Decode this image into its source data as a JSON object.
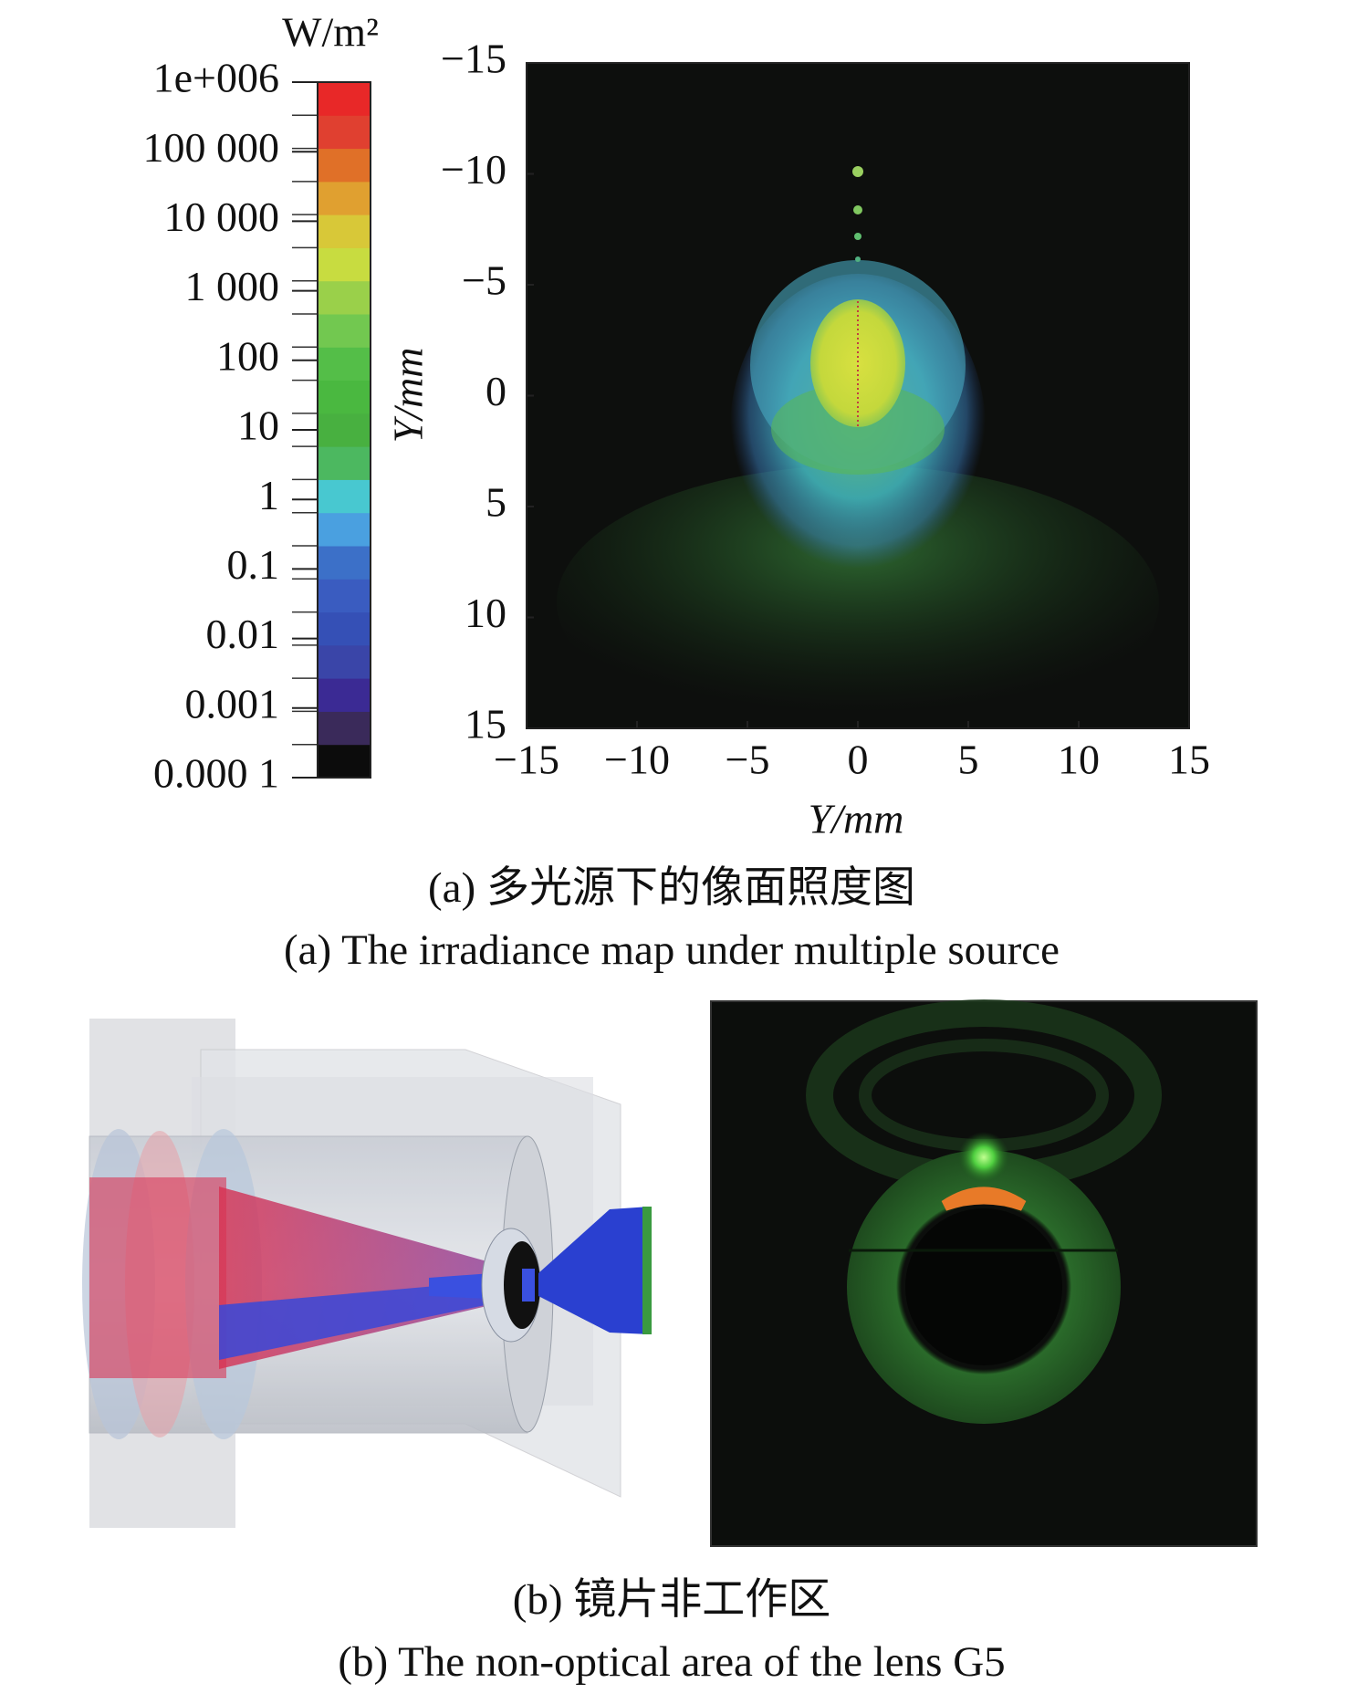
{
  "chart_data": {
    "type": "heatmap",
    "xlabel": "Y/mm",
    "ylabel": "Y/mm",
    "xlim": [
      -15,
      15
    ],
    "ylim": [
      -15,
      15
    ],
    "xticks": [
      {
        "value": -15,
        "label": "−15"
      },
      {
        "value": -10,
        "label": "−10"
      },
      {
        "value": -5,
        "label": "−5"
      },
      0,
      5,
      10,
      15
    ],
    "yticks": [
      {
        "value": -15,
        "label": "−15"
      },
      {
        "value": -10,
        "label": "−10"
      },
      {
        "value": -5,
        "label": "−5"
      },
      0,
      5,
      10,
      15
    ],
    "y_inverted": true,
    "colorbar": {
      "title": "W/m²",
      "scale": "log",
      "lim": [
        0.0001,
        1000000
      ],
      "ticks": [
        {
          "value": 1000000,
          "label": "1e+006"
        },
        {
          "value": 100000,
          "label": "100 000"
        },
        {
          "value": 10000,
          "label": "10 000"
        },
        {
          "value": 1000,
          "label": "1 000"
        },
        100,
        10,
        1,
        0.1,
        0.01,
        0.001,
        {
          "value": 0.0001,
          "label": "0.000 1"
        }
      ],
      "colors": [
        "#0c0c0c",
        "#3a2a5a",
        "#3b2a94",
        "#3a45a8",
        "#3550b6",
        "#3a5cc0",
        "#3c70c8",
        "#4aa0e0",
        "#48c8d0",
        "#4cb860",
        "#48b040",
        "#4ab840",
        "#54be48",
        "#72c850",
        "#9ad04a",
        "#c8dc40",
        "#d8c838",
        "#e0a030",
        "#e07028",
        "#e04030",
        "#e82828"
      ]
    }
  },
  "captions": {
    "a_cn": "(a) 多光源下的像面照度图",
    "a_en": "(a) The irradiance map under multiple source",
    "b_cn": "(b) 镜片非工作区",
    "b_en": "(b) The non-optical area of the lens G5"
  }
}
